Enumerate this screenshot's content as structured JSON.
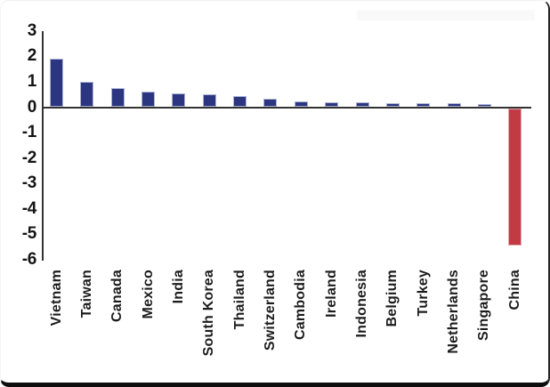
{
  "frame": {
    "background": "#ffffff",
    "border_bottom_color": "#0d0d0d",
    "border_right_color": "#262626"
  },
  "chart_data": {
    "type": "bar",
    "title": "",
    "xlabel": "",
    "ylabel": "",
    "categories": [
      "Vietnam",
      "Taiwan",
      "Canada",
      "Mexico",
      "India",
      "South Korea",
      "Thailand",
      "Switzerland",
      "Cambodia",
      "Ireland",
      "Indonesia",
      "Belgium",
      "Turkey",
      "Netherlands",
      "Singapore",
      "China"
    ],
    "values": [
      1.9,
      1.0,
      0.75,
      0.62,
      0.55,
      0.5,
      0.45,
      0.32,
      0.24,
      0.2,
      0.2,
      0.17,
      0.16,
      0.16,
      0.14,
      -5.4
    ],
    "ylim": [
      -6,
      3
    ],
    "yticks": [
      3,
      2,
      1,
      0,
      -1,
      -2,
      -3,
      -4,
      -5,
      -6
    ],
    "grid": false,
    "legend_position": "none",
    "bar_color_positive": "#2b3580",
    "bar_color_negative": "#c23a44",
    "axis_color": "#333333",
    "label_color": "#1c1c1c"
  }
}
